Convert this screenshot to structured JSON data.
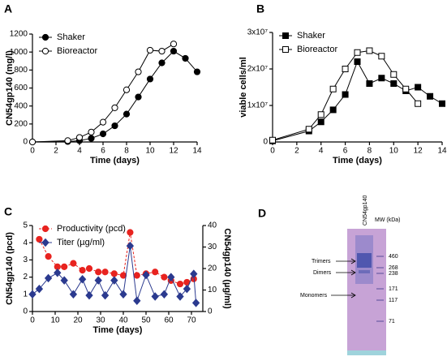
{
  "chart_data": [
    {
      "type": "line",
      "panel_label": "A",
      "x_label": "Time (days)",
      "y_label": "CN54gp140 (mg/l)",
      "x": [
        0,
        3,
        4,
        5,
        6,
        7,
        8,
        9,
        10,
        11,
        12,
        13,
        14
      ],
      "xlim": [
        0,
        14
      ],
      "xticks": [
        0,
        2,
        4,
        6,
        8,
        10,
        12,
        14
      ],
      "ylim": [
        0,
        1200
      ],
      "yticks": [
        0,
        200,
        400,
        600,
        800,
        1000,
        1200
      ],
      "series": [
        {
          "name": "Shaker",
          "color": "#000000",
          "marker": "circle",
          "filled": true,
          "line_style": "solid",
          "values": [
            0,
            5,
            15,
            40,
            90,
            180,
            310,
            500,
            700,
            880,
            1010,
            930,
            780
          ]
        },
        {
          "name": "Bioreactor",
          "color": "#000000",
          "marker": "circle",
          "filled": false,
          "line_style": "solid",
          "values": [
            0,
            15,
            50,
            110,
            220,
            380,
            580,
            780,
            1020,
            1010,
            1090,
            null,
            null
          ]
        }
      ]
    },
    {
      "type": "line",
      "panel_label": "B",
      "x_label": "Time (days)",
      "y_label": "viable cells/ml",
      "x": [
        0,
        3,
        4,
        5,
        6,
        7,
        8,
        9,
        10,
        11,
        12,
        13,
        14
      ],
      "xlim": [
        0,
        14
      ],
      "xticks": [
        0,
        2,
        4,
        6,
        8,
        10,
        12,
        14
      ],
      "ylim": [
        0,
        30000000
      ],
      "yticks": [
        0,
        {
          "value": 10000000,
          "label": "1x10⁷"
        },
        {
          "value": 20000000,
          "label": "2x10⁷"
        },
        {
          "value": 30000000,
          "label": "3x10⁷"
        }
      ],
      "series": [
        {
          "name": "Shaker",
          "color": "#000000",
          "marker": "square",
          "filled": true,
          "line_style": "solid",
          "values": [
            300000,
            3000000,
            5500000,
            8800000,
            13000000,
            22000000,
            16000000,
            17500000,
            16000000,
            14000000,
            15000000,
            12500000,
            10500000
          ]
        },
        {
          "name": "Bioreactor",
          "color": "#000000",
          "marker": "square",
          "filled": false,
          "line_style": "solid",
          "values": [
            500000,
            3500000,
            7500000,
            14500000,
            20000000,
            24500000,
            25000000,
            23500000,
            18500000,
            14500000,
            10500000,
            null,
            null
          ]
        }
      ]
    },
    {
      "type": "line",
      "panel_label": "C",
      "x_label": "Time (days)",
      "y_label": "CN54gp140 (pcd)",
      "y2_label": "CN54gp140 (µg/ml)",
      "x": [
        0,
        3,
        7,
        11,
        14,
        18,
        22,
        25,
        29,
        32,
        36,
        40,
        43,
        46,
        50,
        54,
        58,
        61,
        65,
        68,
        71,
        72
      ],
      "xlim": [
        0,
        75
      ],
      "xticks": [
        0,
        10,
        20,
        30,
        40,
        50,
        60,
        70
      ],
      "ylim": [
        0,
        5
      ],
      "yticks": [
        0,
        1,
        2,
        3,
        4,
        5
      ],
      "y2lim": [
        0,
        40
      ],
      "y2ticks": [
        0,
        10,
        20,
        30,
        40
      ],
      "series": [
        {
          "name": "Productivity (pcd)",
          "color": "#e8231f",
          "marker": "circle",
          "filled": true,
          "line_style": "dashed",
          "values": [
            null,
            4.2,
            3.2,
            2.6,
            2.6,
            2.8,
            2.4,
            2.5,
            2.3,
            2.3,
            2.2,
            2.1,
            4.6,
            2.1,
            2.2,
            2.3,
            2.0,
            1.8,
            1.6,
            1.7,
            1.9,
            null
          ]
        },
        {
          "name": "Titer (µg/ml)",
          "color": "#2b3a8f",
          "marker": "diamond",
          "filled": true,
          "line_style": "solid",
          "axis": "y2",
          "values": [
            8,
            10.5,
            15.5,
            18,
            14.5,
            8,
            15,
            7.5,
            14.5,
            7.5,
            14.5,
            8,
            30.5,
            5,
            17,
            7,
            8,
            16,
            7,
            10.5,
            17.5,
            4
          ]
        }
      ]
    }
  ],
  "gel": {
    "panel_label": "D",
    "lane_label": "CN54gp140",
    "mw_label": "MW (kDa)",
    "bands": [
      "Trimers",
      "Dimers",
      "Monomers"
    ],
    "markers": [
      "460",
      "268",
      "238",
      "171",
      "117",
      "71"
    ]
  }
}
